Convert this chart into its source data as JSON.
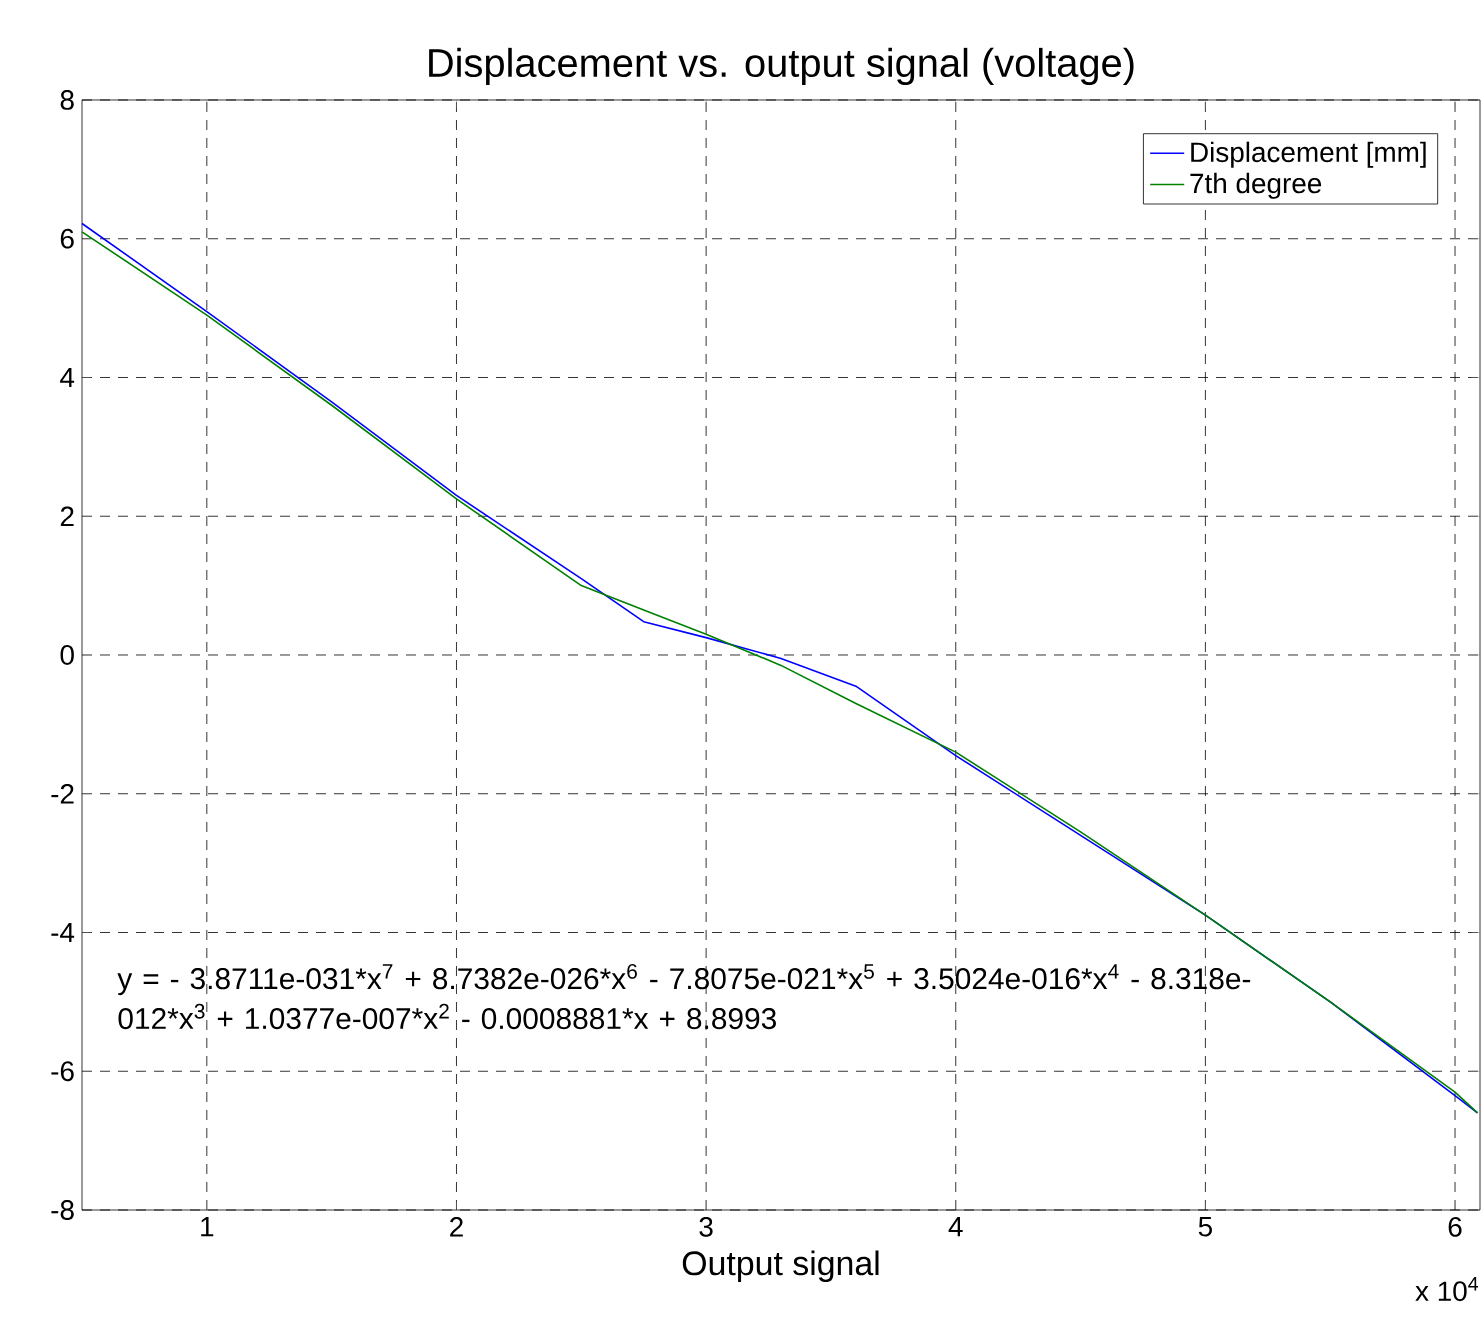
{
  "chart_data": {
    "type": "line",
    "title": "Displacement vs. output signal (voltage)",
    "xlabel": "Output signal",
    "annotations": [
      "y = - 3.8711e-031*x$^{7}$ + 8.7382e-026*x$^{6}$ - 7.8075e-021*x$^{5}$ + 3.5024e-016*x$^{4}$ - 8.318e-012*x$^{3}$ + 1.0377e-007*x$^{2}$ - 0.0008881*x + 8.8993",
      "x 10$^{4}$"
    ],
    "x": [
      0.5,
      1,
      1.5,
      2,
      2.5,
      2.75,
      3,
      3.3,
      3.6,
      4,
      4.5,
      5,
      5.5,
      6,
      6.09
    ],
    "series": [
      {
        "name": "Displacement [mm]",
        "color": "#0000ff",
        "values": [
          6.22,
          4.95,
          3.65,
          2.3,
          1.1,
          0.48,
          0.25,
          -0.05,
          -0.45,
          -1.45,
          -2.6,
          -3.75,
          -5.0,
          -6.35,
          -6.6
        ]
      },
      {
        "name": "7th degree",
        "color": "#008000",
        "values": [
          6.1,
          4.9,
          3.6,
          2.25,
          1.0,
          0.65,
          0.3,
          -0.15,
          -0.7,
          -1.4,
          -2.55,
          -3.75,
          -5.0,
          -6.3,
          -6.6
        ]
      }
    ],
    "xlim": [
      0.5,
      6.1
    ],
    "ylim": [
      -8,
      8
    ],
    "xticks": [
      1,
      2,
      3,
      4,
      5,
      6
    ],
    "yticks": [
      -8,
      -6,
      -4,
      -2,
      0,
      2,
      4,
      6,
      8
    ],
    "grid": true,
    "legend": "top right"
  }
}
